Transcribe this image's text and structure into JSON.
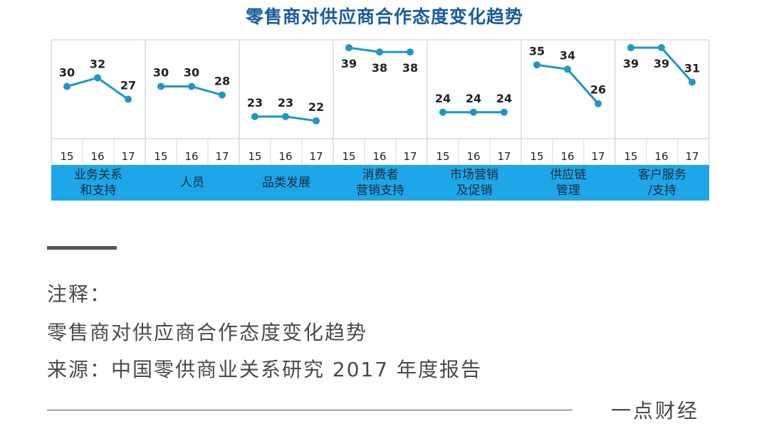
{
  "chart_data": {
    "type": "line",
    "title": "零售商对供应商合作态度变化趋势",
    "x": [
      "15",
      "16",
      "17"
    ],
    "groups": [
      {
        "label": "业务关系\n和支持",
        "values": [
          30,
          32,
          27
        ]
      },
      {
        "label": "人员",
        "values": [
          30,
          30,
          28
        ]
      },
      {
        "label": "品类发展",
        "values": [
          23,
          23,
          22
        ]
      },
      {
        "label": "消费者\n营销支持",
        "values": [
          39,
          38,
          38
        ]
      },
      {
        "label": "市场营销\n及促销",
        "values": [
          24,
          24,
          24
        ]
      },
      {
        "label": "供应链\n管理",
        "values": [
          35,
          34,
          26
        ]
      },
      {
        "label": "客户服务\n/支持",
        "values": [
          39,
          39,
          31
        ]
      }
    ],
    "ylim": [
      20,
      40
    ],
    "line_color": "#1e96c8"
  },
  "notes": {
    "heading": "注释：",
    "line1": "零售商对供应商合作态度变化趋势",
    "source": "来源：中国零供商业关系研究 2017 年度报告"
  },
  "brand": "一点财经"
}
